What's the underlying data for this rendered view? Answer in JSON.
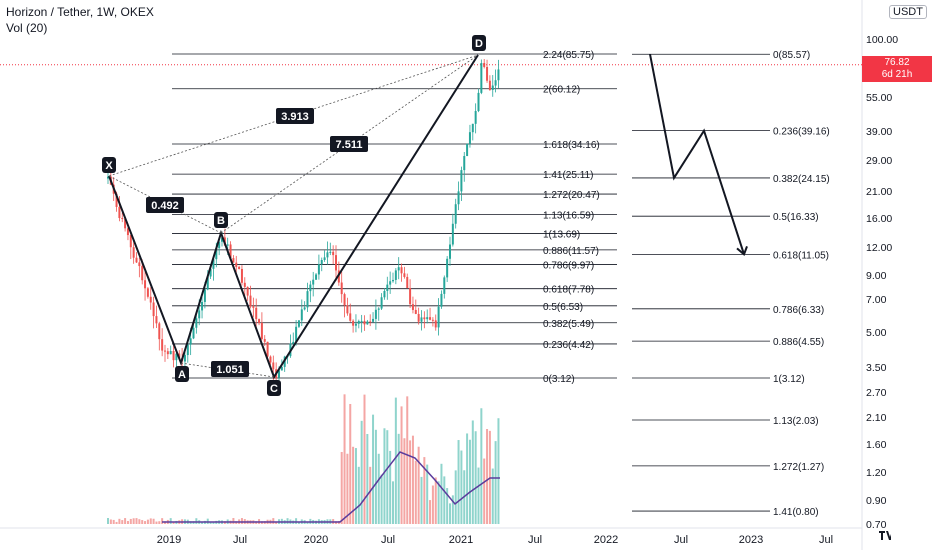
{
  "header": {
    "symbol": "Horizon / Tether, 1W, OKEX",
    "volume": "Vol (20)"
  },
  "currency": "USDT",
  "last_price": {
    "value": "76.82",
    "countdown": "6d 21h"
  },
  "colors": {
    "up": "#26a69a",
    "down": "#ef5350",
    "fib_line": "#131722",
    "ma": "#5b3b9c",
    "price_line": "#f23645"
  },
  "chart_data": {
    "type": "candlestick",
    "y_scale": "log",
    "y_ticks": [
      "100.00",
      "55.00",
      "39.00",
      "29.00",
      "21.00",
      "16.00",
      "12.00",
      "9.00",
      "7.00",
      "5.00",
      "3.50",
      "2.70",
      "2.10",
      "1.60",
      "1.20",
      "0.90",
      "0.70"
    ],
    "x_ticks": [
      "2019",
      "Jul",
      "2020",
      "Jul",
      "2021",
      "Jul",
      "2022",
      "Jul",
      "2023",
      "Jul"
    ],
    "pattern_points": [
      {
        "label": "X",
        "price": 24.5
      },
      {
        "label": "A",
        "price": 3.55
      },
      {
        "label": "B",
        "price": 13.69
      },
      {
        "label": "C",
        "price": 3.12
      },
      {
        "label": "D",
        "price": 85.75
      }
    ],
    "ratios": [
      "0.492",
      "3.913",
      "7.511",
      "1.051"
    ],
    "fib_left": [
      {
        "label": "2.24(85.75)",
        "value": 85.75
      },
      {
        "label": "2(60.12)",
        "value": 60.12
      },
      {
        "label": "1.618(34.16)",
        "value": 34.16
      },
      {
        "label": "1.41(25.11)",
        "value": 25.11
      },
      {
        "label": "1.272(20.47)",
        "value": 20.47
      },
      {
        "label": "1.13(16.59)",
        "value": 16.59
      },
      {
        "label": "1(13.69)",
        "value": 13.69
      },
      {
        "label": "0.886(11.57)",
        "value": 11.57
      },
      {
        "label": "0.786(9.97)",
        "value": 9.97
      },
      {
        "label": "0.618(7.78)",
        "value": 7.78
      },
      {
        "label": "0.5(6.53)",
        "value": 6.53
      },
      {
        "label": "0.382(5.49)",
        "value": 5.49
      },
      {
        "label": "0.236(4.42)",
        "value": 4.42
      },
      {
        "label": "0(3.12)",
        "value": 3.12
      }
    ],
    "fib_right": [
      {
        "label": "0(85.57)",
        "value": 85.57
      },
      {
        "label": "0.236(39.16)",
        "value": 39.16
      },
      {
        "label": "0.382(24.15)",
        "value": 24.15
      },
      {
        "label": "0.5(16.33)",
        "value": 16.33
      },
      {
        "label": "0.618(11.05)",
        "value": 11.05
      },
      {
        "label": "0.786(6.33)",
        "value": 6.33
      },
      {
        "label": "0.886(4.55)",
        "value": 4.55
      },
      {
        "label": "1(3.12)",
        "value": 3.12
      },
      {
        "label": "1.13(2.03)",
        "value": 2.03
      },
      {
        "label": "1.272(1.27)",
        "value": 1.27
      },
      {
        "label": "1.41(0.80)",
        "value": 0.8
      }
    ],
    "projection_path": [
      85.57,
      24.15,
      39.16,
      11.05
    ],
    "last_price": 76.82
  }
}
